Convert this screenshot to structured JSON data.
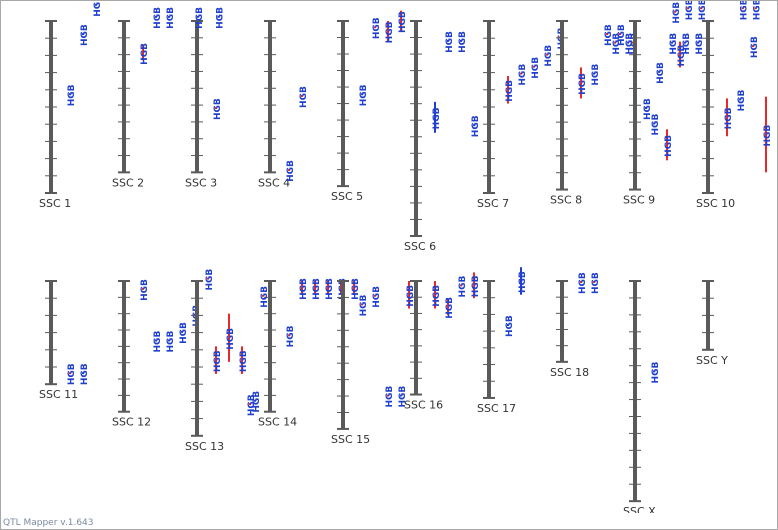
{
  "app": {
    "version_label": "QTL Mapper v.1.643"
  },
  "colors": {
    "chromosome": "#5a5a5a",
    "qtl_red": "#e8282a",
    "qtl_blue": "#1f3fcf",
    "label_blue": "#1f3fcf",
    "chr_label": "#333333"
  },
  "qtl_trait": "HGB",
  "chromosomes": [
    {
      "name": "SSC 1",
      "length": 1.0,
      "row": 0,
      "qtls": [
        {
          "pos": 0.42,
          "span": 0.0,
          "color": "blue",
          "col": 1
        },
        {
          "pos": 0.07,
          "span": 0.0,
          "color": "blue",
          "col": 2
        },
        {
          "pos": -0.1,
          "span": 0.0,
          "color": "blue",
          "col": 3
        }
      ]
    },
    {
      "name": "SSC 2",
      "length": 0.88,
      "row": 0,
      "qtls": [
        {
          "pos": 0.14,
          "span": 0.09,
          "color": "red",
          "col": 1
        },
        {
          "pos": -0.03,
          "span": 0.0,
          "color": "blue",
          "col": 2
        },
        {
          "pos": -0.03,
          "span": 0.0,
          "color": "blue",
          "col": 3
        }
      ]
    },
    {
      "name": "SSC 3",
      "length": 0.88,
      "row": 0,
      "qtls": [
        {
          "pos": 0.5,
          "span": 0.0,
          "color": "red",
          "col": 1
        },
        {
          "pos": -0.03,
          "span": 0.0,
          "color": "blue",
          "col": 1.2,
          "side": "left"
        },
        {
          "pos": -0.03,
          "span": 0.0,
          "color": "blue",
          "col": -0.4
        }
      ]
    },
    {
      "name": "SSC 4",
      "length": 0.88,
      "row": 0,
      "qtls": [
        {
          "pos": 0.43,
          "span": 0.0,
          "color": "red",
          "col": 2
        },
        {
          "pos": 0.86,
          "span": 0.0,
          "color": "red",
          "col": 1
        }
      ]
    },
    {
      "name": "SSC 5",
      "length": 0.96,
      "row": 0,
      "qtls": [
        {
          "pos": 0.42,
          "span": 0.0,
          "color": "blue",
          "col": 1
        },
        {
          "pos": 0.03,
          "span": 0.0,
          "color": "red",
          "col": 2
        },
        {
          "pos": 0.0,
          "span": 0.12,
          "color": "red",
          "col": 3
        },
        {
          "pos": -0.06,
          "span": 0.12,
          "color": "red",
          "col": 4
        }
      ]
    },
    {
      "name": "SSC 6",
      "length": 1.25,
      "row": 0,
      "qtls": [
        {
          "pos": 0.47,
          "span": 0.18,
          "color": "blue",
          "col": 1
        },
        {
          "pos": 0.11,
          "span": 0.0,
          "color": "blue",
          "col": 2
        },
        {
          "pos": 0.11,
          "span": 0.0,
          "color": "blue",
          "col": 3
        },
        {
          "pos": 0.6,
          "span": 0.0,
          "color": "blue",
          "col": 4
        }
      ]
    },
    {
      "name": "SSC 7",
      "length": 1.0,
      "row": 0,
      "qtls": [
        {
          "pos": 0.32,
          "span": 0.16,
          "color": "red",
          "col": 1
        },
        {
          "pos": 0.3,
          "span": 0.0,
          "color": "red",
          "col": 2
        },
        {
          "pos": 0.26,
          "span": 0.0,
          "color": "red",
          "col": 3
        },
        {
          "pos": 0.19,
          "span": 0.0,
          "color": "red",
          "col": 4
        },
        {
          "pos": 0.09,
          "span": 0.0,
          "color": "red",
          "col": 5
        }
      ]
    },
    {
      "name": "SSC 8",
      "length": 0.98,
      "row": 0,
      "qtls": [
        {
          "pos": 0.27,
          "span": 0.18,
          "color": "red",
          "col": 1
        },
        {
          "pos": 0.3,
          "span": 0.0,
          "color": "blue",
          "col": 2
        },
        {
          "pos": 0.07,
          "span": 0.0,
          "color": "red",
          "col": 3
        },
        {
          "pos": 0.07,
          "span": 0.0,
          "color": "red",
          "col": 4
        },
        {
          "pos": 0.12,
          "span": 0.0,
          "color": "red",
          "col": 5
        },
        {
          "pos": 0.5,
          "span": 0.0,
          "color": "blue",
          "col": 6
        },
        {
          "pos": 0.29,
          "span": 0.0,
          "color": "blue",
          "col": 7
        },
        {
          "pos": 0.12,
          "span": 0.0,
          "color": "blue",
          "col": 8
        },
        {
          "pos": 0.12,
          "span": 0.0,
          "color": "blue",
          "col": 9
        },
        {
          "pos": 0.12,
          "span": 0.0,
          "color": "blue",
          "col": 10
        }
      ]
    },
    {
      "name": "SSC 9",
      "length": 0.98,
      "row": 0,
      "qtls": [
        {
          "pos": 0.59,
          "span": 0.0,
          "color": "blue",
          "col": 1
        },
        {
          "pos": 0.63,
          "span": 0.18,
          "color": "red",
          "col": 2
        },
        {
          "pos": 0.12,
          "span": 0.15,
          "color": "red",
          "col": 3
        },
        {
          "pos": 0.12,
          "span": 0.0,
          "color": "blue",
          "col": -1,
          "side": "left"
        },
        {
          "pos": 0.12,
          "span": 0.0,
          "color": "red",
          "col": -2,
          "side": "left"
        }
      ]
    },
    {
      "name": "SSC 10",
      "length": 1.0,
      "row": 0,
      "qtls": [
        {
          "pos": 0.45,
          "span": 0.22,
          "color": "red",
          "col": 1
        },
        {
          "pos": 0.45,
          "span": 0.0,
          "color": "blue",
          "col": 2
        },
        {
          "pos": 0.14,
          "span": 0.0,
          "color": "red",
          "col": 3
        },
        {
          "pos": 0.44,
          "span": 0.44,
          "color": "red",
          "col": 4
        },
        {
          "pos": -0.06,
          "span": 0.0,
          "color": "red",
          "col": -3,
          "side": "left"
        },
        {
          "pos": -0.08,
          "span": 0.0,
          "color": "red",
          "col": -2,
          "side": "left"
        },
        {
          "pos": -0.08,
          "span": 0.0,
          "color": "red",
          "col": -1,
          "side": "left"
        },
        {
          "pos": -0.08,
          "span": 0.0,
          "color": "red",
          "col": 2.2
        },
        {
          "pos": -0.08,
          "span": 0.0,
          "color": "red",
          "col": 3.2
        }
      ]
    },
    {
      "name": "SSC 11",
      "length": 0.6,
      "row": 1,
      "qtls": [
        {
          "pos": 0.53,
          "span": 0.0,
          "color": "red",
          "col": 1
        },
        {
          "pos": 0.53,
          "span": 0.0,
          "color": "blue",
          "col": 2
        }
      ]
    },
    {
      "name": "SSC 12",
      "length": 0.76,
      "row": 1,
      "qtls": [
        {
          "pos": 0.04,
          "span": 0.0,
          "color": "red",
          "col": 1
        },
        {
          "pos": 0.34,
          "span": 0.0,
          "color": "blue",
          "col": 2
        },
        {
          "pos": 0.34,
          "span": 0.0,
          "color": "blue",
          "col": 3
        },
        {
          "pos": 0.29,
          "span": 0.0,
          "color": "blue",
          "col": 4
        },
        {
          "pos": 0.19,
          "span": 0.0,
          "color": "blue",
          "col": 5
        },
        {
          "pos": -0.02,
          "span": 0.0,
          "color": "red",
          "col": 6
        }
      ]
    },
    {
      "name": "SSC 13",
      "length": 0.9,
      "row": 1,
      "qtls": [
        {
          "pos": 0.38,
          "span": 0.16,
          "color": "red",
          "col": 1
        },
        {
          "pos": 0.19,
          "span": 0.28,
          "color": "red",
          "col": 2
        },
        {
          "pos": 0.38,
          "span": 0.16,
          "color": "red",
          "col": 3
        },
        {
          "pos": 0.69,
          "span": 0.0,
          "color": "blue",
          "col": 4
        }
      ]
    },
    {
      "name": "SSC 14",
      "length": 0.76,
      "row": 1,
      "qtls": [
        {
          "pos": 0.31,
          "span": 0.0,
          "color": "red",
          "col": 1
        },
        {
          "pos": 0.0,
          "span": 0.08,
          "color": "red",
          "col": 2
        },
        {
          "pos": 0.0,
          "span": 0.08,
          "color": "red",
          "col": 3
        },
        {
          "pos": 0.0,
          "span": 0.08,
          "color": "red",
          "col": 4
        },
        {
          "pos": 0.0,
          "span": 0.08,
          "color": "red",
          "col": 5
        },
        {
          "pos": 0.0,
          "span": 0.08,
          "color": "red",
          "col": 6
        },
        {
          "pos": 0.08,
          "span": 0.0,
          "color": "red",
          "col": -1,
          "side": "left"
        },
        {
          "pos": 0.71,
          "span": 0.0,
          "color": "red",
          "col": -2,
          "side": "left"
        }
      ]
    },
    {
      "name": "SSC 15",
      "length": 0.86,
      "row": 1,
      "qtls": [
        {
          "pos": 0.13,
          "span": 0.0,
          "color": "red",
          "col": 1
        },
        {
          "pos": 0.08,
          "span": 0.0,
          "color": "red",
          "col": 2
        },
        {
          "pos": 0.66,
          "span": 0.0,
          "color": "red",
          "col": 3
        },
        {
          "pos": 0.66,
          "span": 0.0,
          "color": "blue",
          "col": 4
        }
      ]
    },
    {
      "name": "SSC 16",
      "length": 0.66,
      "row": 1,
      "qtls": [
        {
          "pos": 0.0,
          "span": 0.16,
          "color": "red",
          "col": 1
        },
        {
          "pos": 0.1,
          "span": 0.1,
          "color": "red",
          "col": 2
        },
        {
          "pos": 0.02,
          "span": 0.0,
          "color": "red",
          "col": 3
        },
        {
          "pos": -0.05,
          "span": 0.15,
          "color": "red",
          "col": 4
        },
        {
          "pos": 0.0,
          "span": 0.16,
          "color": "red",
          "col": -1,
          "side": "left"
        }
      ]
    },
    {
      "name": "SSC 17",
      "length": 0.68,
      "row": 1,
      "qtls": [
        {
          "pos": 0.25,
          "span": 0.0,
          "color": "blue",
          "col": 1
        },
        {
          "pos": -0.08,
          "span": 0.16,
          "color": "blue",
          "col": 2
        }
      ]
    },
    {
      "name": "SSC 18",
      "length": 0.47,
      "row": 1,
      "qtls": [
        {
          "pos": 0.0,
          "span": 0.0,
          "color": "red",
          "col": 1
        },
        {
          "pos": 0.0,
          "span": 0.0,
          "color": "red",
          "col": 2
        }
      ]
    },
    {
      "name": "SSC X",
      "length": 1.28,
      "row": 1,
      "qtls": [
        {
          "pos": 0.52,
          "span": 0.0,
          "color": "blue",
          "col": 1
        }
      ]
    },
    {
      "name": "SSC Y",
      "length": 0.4,
      "row": 1,
      "qtls": []
    }
  ]
}
